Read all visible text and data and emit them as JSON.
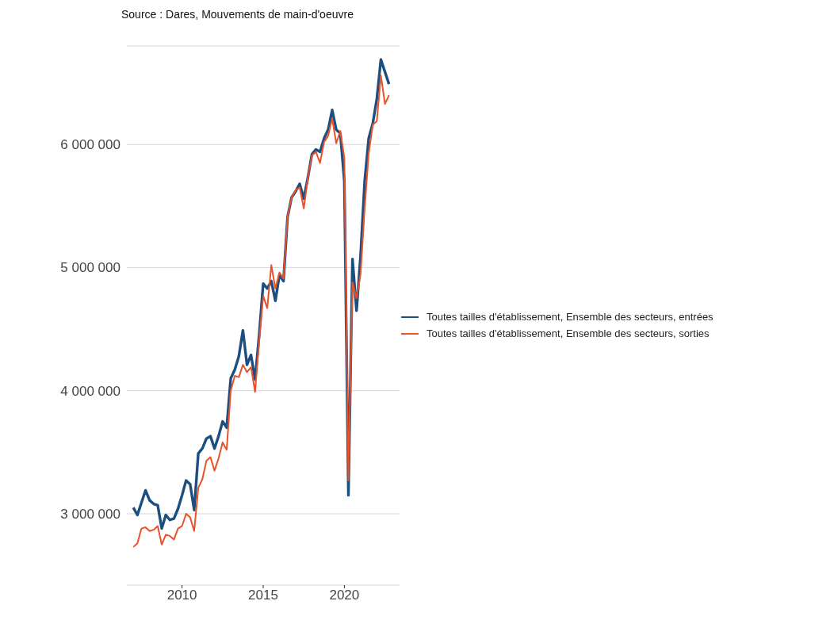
{
  "chart_data": {
    "type": "line",
    "annotations": [
      "Source : Dares, Mouvements de main-d'oeuvre"
    ],
    "x": [
      2007,
      2007.25,
      2007.5,
      2007.75,
      2008,
      2008.25,
      2008.5,
      2008.75,
      2009,
      2009.25,
      2009.5,
      2009.75,
      2010,
      2010.25,
      2010.5,
      2010.75,
      2011,
      2011.25,
      2011.5,
      2011.75,
      2012,
      2012.25,
      2012.5,
      2012.75,
      2013,
      2013.25,
      2013.5,
      2013.75,
      2014,
      2014.25,
      2014.5,
      2014.75,
      2015,
      2015.25,
      2015.5,
      2015.75,
      2016,
      2016.25,
      2016.5,
      2016.75,
      2017,
      2017.25,
      2017.5,
      2017.75,
      2018,
      2018.25,
      2018.5,
      2018.75,
      2019,
      2019.25,
      2019.5,
      2019.75,
      2020,
      2020.25,
      2020.5,
      2020.75,
      2021,
      2021.25,
      2021.5,
      2021.75,
      2022,
      2022.25,
      2022.5,
      2022.75
    ],
    "series": [
      {
        "name": "Toutes tailles d'établissement, Ensemble des secteurs, entrées",
        "color": "#1c4f80",
        "values": [
          3050000,
          2990000,
          3090000,
          3190000,
          3110000,
          3080000,
          3070000,
          2880000,
          2990000,
          2950000,
          2960000,
          3040000,
          3150000,
          3270000,
          3240000,
          3030000,
          3490000,
          3530000,
          3610000,
          3630000,
          3530000,
          3630000,
          3750000,
          3700000,
          4100000,
          4170000,
          4280000,
          4490000,
          4210000,
          4290000,
          4090000,
          4450000,
          4870000,
          4830000,
          4890000,
          4730000,
          4940000,
          4890000,
          5410000,
          5570000,
          5620000,
          5680000,
          5560000,
          5730000,
          5920000,
          5960000,
          5940000,
          6050000,
          6120000,
          6280000,
          6120000,
          6090000,
          5700000,
          3150000,
          5070000,
          4650000,
          5100000,
          5700000,
          6050000,
          6170000,
          6370000,
          6690000,
          6590000,
          6490000
        ]
      },
      {
        "name": "Toutes tailles d'établissement, Ensemble des secteurs, sorties",
        "color": "#e8522a",
        "values": [
          2730000,
          2760000,
          2880000,
          2890000,
          2860000,
          2870000,
          2900000,
          2750000,
          2830000,
          2820000,
          2790000,
          2880000,
          2900000,
          3000000,
          2970000,
          2860000,
          3210000,
          3280000,
          3430000,
          3460000,
          3350000,
          3450000,
          3580000,
          3520000,
          4000000,
          4120000,
          4110000,
          4210000,
          4150000,
          4190000,
          3990000,
          4400000,
          4770000,
          4670000,
          5020000,
          4830000,
          4960000,
          4910000,
          5410000,
          5570000,
          5630000,
          5650000,
          5480000,
          5730000,
          5910000,
          5940000,
          5850000,
          6020000,
          6070000,
          6210000,
          6010000,
          6110000,
          5890000,
          3270000,
          4880000,
          4750000,
          4950000,
          5480000,
          5930000,
          6160000,
          6190000,
          6560000,
          6330000,
          6400000
        ]
      }
    ],
    "xlim": [
      2006.6,
      2023.4
    ],
    "xticks": [
      2010,
      2015,
      2020
    ],
    "ylim": [
      2420000,
      6800000
    ],
    "yticks": [
      {
        "value": 3000000,
        "label": "3 000 000"
      },
      {
        "value": 4000000,
        "label": "4 000 000"
      },
      {
        "value": 5000000,
        "label": "5 000 000"
      },
      {
        "value": 6000000,
        "label": "6 000 000"
      }
    ],
    "grid": "y",
    "legend": "right",
    "marker": "none",
    "line_style": "solid"
  }
}
